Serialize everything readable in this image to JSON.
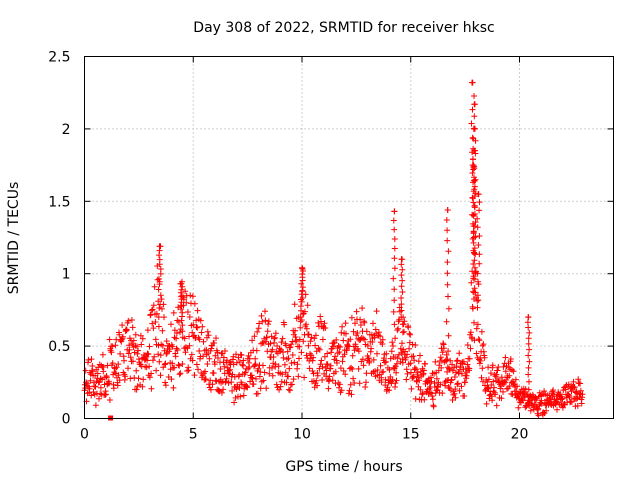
{
  "chart_data": {
    "type": "scatter",
    "title": "Day 308 of 2022, SRMTID for receiver hksc",
    "xlabel": "GPS time / hours",
    "ylabel": "SRMTID / TECUs",
    "xlim": [
      0,
      24
    ],
    "ylim": [
      0,
      2.5
    ],
    "xticks": [
      0,
      5,
      10,
      15,
      20
    ],
    "xtick_labels": [
      "0",
      "5",
      "10",
      "15",
      "20"
    ],
    "yticks": [
      0,
      0.5,
      1,
      1.5,
      2,
      2.5
    ],
    "ytick_labels": [
      "0",
      "0.5",
      "1",
      "1.5",
      "2",
      "2.5"
    ],
    "grid": true,
    "marker": "plus",
    "series_color": "#ff0000",
    "outlier_marker": {
      "x": 1.2,
      "y": 0.0,
      "marker": "square"
    },
    "profile": [
      [
        0.0,
        0.28
      ],
      [
        0.5,
        0.25
      ],
      [
        1.0,
        0.32
      ],
      [
        1.5,
        0.38
      ],
      [
        2.0,
        0.5
      ],
      [
        2.5,
        0.42
      ],
      [
        3.0,
        0.45
      ],
      [
        3.4,
        0.75
      ],
      [
        3.6,
        0.55
      ],
      [
        4.0,
        0.45
      ],
      [
        4.5,
        0.62
      ],
      [
        5.0,
        0.58
      ],
      [
        5.5,
        0.38
      ],
      [
        6.0,
        0.35
      ],
      [
        6.5,
        0.3
      ],
      [
        7.0,
        0.28
      ],
      [
        7.5,
        0.32
      ],
      [
        8.0,
        0.45
      ],
      [
        8.5,
        0.5
      ],
      [
        9.0,
        0.42
      ],
      [
        9.5,
        0.38
      ],
      [
        10.0,
        0.7
      ],
      [
        10.3,
        0.5
      ],
      [
        11.0,
        0.45
      ],
      [
        11.5,
        0.35
      ],
      [
        12.0,
        0.42
      ],
      [
        12.5,
        0.48
      ],
      [
        13.0,
        0.5
      ],
      [
        13.5,
        0.45
      ],
      [
        14.0,
        0.3
      ],
      [
        14.5,
        0.55
      ],
      [
        15.0,
        0.4
      ],
      [
        15.5,
        0.25
      ],
      [
        16.0,
        0.2
      ],
      [
        16.5,
        0.35
      ],
      [
        17.0,
        0.28
      ],
      [
        17.5,
        0.3
      ],
      [
        17.9,
        0.9
      ],
      [
        18.3,
        0.4
      ],
      [
        18.6,
        0.22
      ],
      [
        19.0,
        0.25
      ],
      [
        19.5,
        0.3
      ],
      [
        20.0,
        0.15
      ],
      [
        20.5,
        0.12
      ],
      [
        21.0,
        0.1
      ],
      [
        21.5,
        0.12
      ],
      [
        22.0,
        0.15
      ],
      [
        22.5,
        0.18
      ],
      [
        22.9,
        0.18
      ]
    ],
    "spikes": [
      {
        "x": 3.45,
        "y": 1.19
      },
      {
        "x": 4.45,
        "y": 0.93
      },
      {
        "x": 10.0,
        "y": 1.04
      },
      {
        "x": 14.25,
        "y": 1.43
      },
      {
        "x": 14.6,
        "y": 1.1
      },
      {
        "x": 16.7,
        "y": 1.44
      },
      {
        "x": 17.85,
        "y": 2.32
      },
      {
        "x": 17.95,
        "y": 2.17
      },
      {
        "x": 17.9,
        "y": 2.0
      },
      {
        "x": 17.92,
        "y": 1.85
      },
      {
        "x": 17.88,
        "y": 1.75
      },
      {
        "x": 18.1,
        "y": 1.55
      },
      {
        "x": 20.4,
        "y": 0.7
      }
    ]
  }
}
